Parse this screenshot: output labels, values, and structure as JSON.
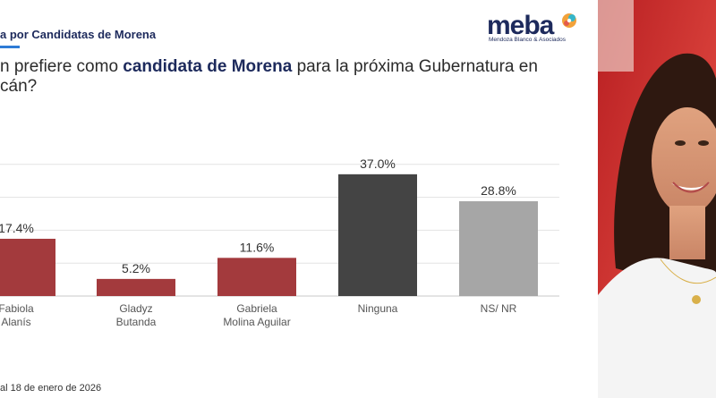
{
  "header": {
    "title": "a por Candidatas de Morena"
  },
  "question": {
    "part1": "n prefiere como ",
    "highlight": "candidata de Morena",
    "part2": " para la próxima Gubernatura en",
    "line2": "cán?"
  },
  "logo": {
    "word": "meba",
    "subtitle": "Mendoza Blanco & Asociados"
  },
  "footer": {
    "text": "al 18 de enero de 2026"
  },
  "chart_data": {
    "type": "bar",
    "title": "",
    "xlabel": "",
    "ylabel": "",
    "ylim": [
      0,
      40
    ],
    "categories": [
      [
        "Fabiola",
        "Alanís"
      ],
      [
        "Gladyz",
        "Butanda"
      ],
      [
        "Gabriela",
        "Molina Aguilar"
      ],
      [
        "Ninguna"
      ],
      [
        "NS/ NR"
      ]
    ],
    "values": [
      17.4,
      5.2,
      11.6,
      37.0,
      28.8
    ],
    "data_labels": [
      "17.4%",
      "5.2%",
      "11.6%",
      "37.0%",
      "28.8%"
    ],
    "colors": [
      "#a33a3d",
      "#a33a3d",
      "#a33a3d",
      "#444444",
      "#a6a6a6"
    ],
    "grid": true
  },
  "photo": {
    "description_colors": {
      "background": "#c62b2b",
      "shirt": "#f4f4f4",
      "hair": "#2e1810"
    }
  }
}
